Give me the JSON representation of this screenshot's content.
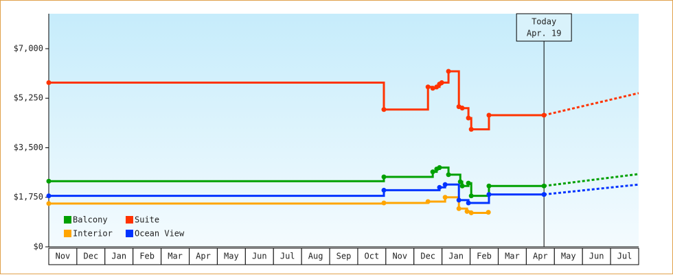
{
  "chart_data": {
    "type": "step-line",
    "categories": [
      "Nov",
      "Dec",
      "Jan",
      "Feb",
      "Mar",
      "Apr",
      "May",
      "Jun",
      "Jul",
      "Aug",
      "Sep",
      "Oct",
      "Nov",
      "Dec",
      "Jan",
      "Feb",
      "Mar",
      "Apr",
      "May",
      "Jun",
      "Jul"
    ],
    "xlim": [
      0,
      21
    ],
    "ylim": [
      0,
      8235
    ],
    "yticks": [
      {
        "value": 0,
        "label": "$0"
      },
      {
        "value": 1750,
        "label": "$1,750"
      },
      {
        "value": 3500,
        "label": "$3,500"
      },
      {
        "value": 5250,
        "label": "$5,250"
      },
      {
        "value": 7000,
        "label": "$7,000"
      }
    ],
    "legend": "lower left",
    "today": {
      "x": 17.63,
      "line1": "Today",
      "line2": "Apr. 19"
    },
    "series": [
      {
        "name": "Balcony",
        "color": "#00a000",
        "x": [
          0,
          11.93,
          13.67,
          13.81,
          13.91,
          14.23,
          14.65,
          14.72,
          14.94,
          15.04,
          15.67,
          17.63
        ],
        "values": [
          2320,
          2470,
          2650,
          2750,
          2800,
          2550,
          2300,
          2150,
          2250,
          1800,
          2150,
          2150
        ],
        "forecast": {
          "x": [
            17.63,
            21
          ],
          "values": [
            2150,
            2570
          ]
        }
      },
      {
        "name": "Suite",
        "color": "#ff3300",
        "x": [
          0,
          11.93,
          13.5,
          13.67,
          13.81,
          13.91,
          13.99,
          14.23,
          14.6,
          14.72,
          14.94,
          15.04,
          15.67,
          17.63
        ],
        "values": [
          5800,
          4850,
          5650,
          5600,
          5650,
          5750,
          5800,
          6200,
          4950,
          4900,
          4550,
          4150,
          4650,
          4650
        ],
        "forecast": {
          "x": [
            17.63,
            21
          ],
          "values": [
            4650,
            5430
          ]
        }
      },
      {
        "name": "Interior",
        "color": "#ffa500",
        "x": [
          0,
          11.93,
          13.5,
          14.11,
          14.6,
          14.89,
          15.04,
          15.65
        ],
        "values": [
          1530,
          1550,
          1600,
          1750,
          1350,
          1250,
          1200,
          1220
        ]
      },
      {
        "name": "Ocean View",
        "color": "#0033ff",
        "x": [
          0,
          11.93,
          13.91,
          14.11,
          14.6,
          14.94,
          15.67,
          17.63
        ],
        "values": [
          1800,
          2000,
          2100,
          2200,
          1650,
          1550,
          1850,
          1850
        ],
        "forecast": {
          "x": [
            17.63,
            21
          ],
          "values": [
            1850,
            2200
          ]
        }
      }
    ]
  }
}
